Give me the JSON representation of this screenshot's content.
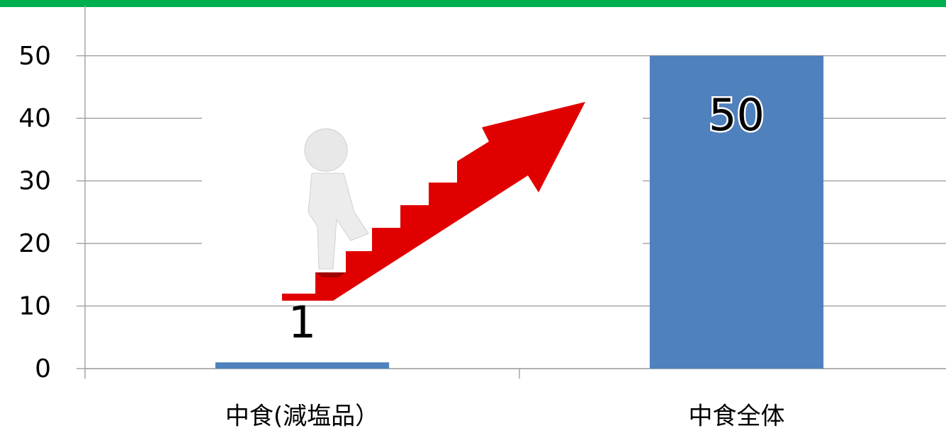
{
  "chart_data": {
    "type": "bar",
    "categories": [
      "中食(減塩品）",
      "中食全体"
    ],
    "values": [
      1,
      50
    ],
    "color": "#4f81bd",
    "ylim": [
      0,
      58
    ],
    "yticks": [
      0,
      10,
      20,
      30,
      40,
      50
    ],
    "grid": true
  }
}
